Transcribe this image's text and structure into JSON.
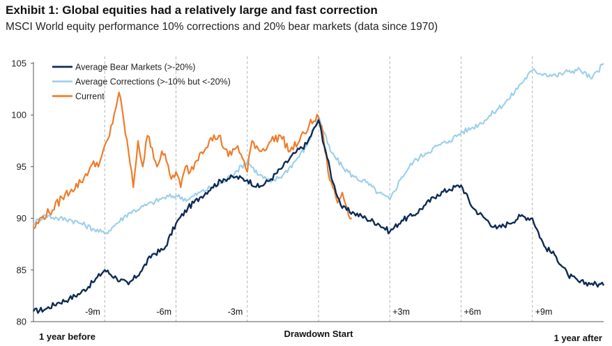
{
  "title": "Exhibit 1: Global equities had a relatively large and fast correction",
  "subtitle": "MSCI World equity performance 10% corrections and 20% bear markets (data since 1970)",
  "chart_data": {
    "type": "line",
    "title": "Exhibit 1: Global equities had a relatively large and fast correction",
    "subtitle": "MSCI World equity performance 10% corrections and 20% bear markets (data since 1970)",
    "ylim": [
      80,
      105
    ],
    "yticks": [
      80,
      85,
      90,
      95,
      100,
      105
    ],
    "xlim": [
      -12,
      12
    ],
    "grid": false,
    "legend_position": "top-left",
    "vlines": [
      -9,
      -6,
      -3,
      0,
      3,
      6,
      9
    ],
    "xmarkers": [
      {
        "x": -9,
        "label": "-9m"
      },
      {
        "x": -6,
        "label": "-6m"
      },
      {
        "x": -3,
        "label": "-3m"
      },
      {
        "x": 3,
        "label": "+3m"
      },
      {
        "x": 6,
        "label": "+6m"
      },
      {
        "x": 9,
        "label": "+9m"
      }
    ],
    "bottom_labels": {
      "left": "1 year before",
      "center": "Drawdown Start",
      "right": "1 year after"
    },
    "xlabel": "",
    "ylabel": "",
    "series": [
      {
        "name": "Average Bear Markets (>-20%)",
        "color": "#0d2b55",
        "x": [
          -12,
          -11.5,
          -11,
          -10.5,
          -10,
          -9.5,
          -9,
          -8.5,
          -8,
          -7.5,
          -7,
          -6.5,
          -6,
          -5.5,
          -5,
          -4.5,
          -4,
          -3.5,
          -3,
          -2.5,
          -2,
          -1.5,
          -1,
          -0.5,
          0,
          0.3,
          0.6,
          1,
          1.5,
          2,
          2.5,
          3,
          3.5,
          4,
          4.5,
          5,
          5.5,
          6,
          6.5,
          7,
          7.5,
          8,
          8.5,
          9,
          9.5,
          10,
          10.5,
          11,
          11.5,
          12
        ],
        "values": [
          81,
          81.2,
          81.8,
          82.2,
          82.8,
          83.8,
          85.0,
          84.2,
          83.6,
          84.8,
          86.5,
          87.0,
          89.5,
          91.0,
          92.0,
          93.0,
          93.8,
          94.0,
          93.7,
          93.0,
          93.8,
          95.0,
          96.3,
          97.2,
          99.5,
          96.5,
          93.5,
          91.0,
          90.5,
          90.0,
          89.5,
          88.7,
          89.8,
          90.3,
          91.3,
          92.3,
          92.8,
          93.2,
          91.0,
          90.0,
          89.0,
          89.5,
          90.2,
          90.0,
          87.3,
          86.3,
          84.5,
          83.8,
          83.7,
          83.5
        ]
      },
      {
        "name": "Average Corrections (>-10% but <-20%)",
        "color": "#9fd0ea",
        "x": [
          -12,
          -11.5,
          -11,
          -10.5,
          -10,
          -9.5,
          -9,
          -8.5,
          -8,
          -7.5,
          -7,
          -6.5,
          -6,
          -5.5,
          -5,
          -4.5,
          -4,
          -3.5,
          -3,
          -2.5,
          -2,
          -1.5,
          -1,
          -0.5,
          0,
          0.5,
          1,
          1.5,
          2,
          2.5,
          3,
          3.5,
          4,
          4.5,
          5,
          5.5,
          6,
          6.5,
          7,
          7.5,
          8,
          8.5,
          9,
          9.5,
          10,
          10.5,
          11,
          11.5,
          12
        ],
        "values": [
          89.5,
          90.3,
          90.0,
          89.9,
          89.5,
          89.0,
          88.5,
          89.5,
          90.5,
          91.0,
          91.5,
          92.0,
          92.2,
          91.8,
          92.5,
          93.0,
          93.5,
          94.5,
          95.5,
          94.2,
          93.5,
          94.2,
          95.5,
          97.0,
          99.8,
          96.5,
          95.0,
          94.0,
          93.5,
          92.5,
          91.8,
          94.0,
          95.5,
          96.3,
          97.0,
          97.5,
          98.3,
          98.8,
          99.5,
          100.5,
          101.5,
          103.0,
          104.3,
          104.0,
          103.8,
          104.2,
          104.4,
          103.5,
          105.0
        ]
      },
      {
        "name": "Current",
        "color": "#ee7d2b",
        "x": [
          -12,
          -11.6,
          -11.2,
          -10.8,
          -10.4,
          -10,
          -9.6,
          -9.2,
          -8.8,
          -8.4,
          -8,
          -7.8,
          -7.6,
          -7.4,
          -7.2,
          -7,
          -6.8,
          -6.6,
          -6.4,
          -6.2,
          -6,
          -5.8,
          -5.6,
          -5.4,
          -5,
          -4.6,
          -4.2,
          -3.8,
          -3.4,
          -3,
          -2.8,
          -2.4,
          -2,
          -1.6,
          -1.2,
          -0.8,
          -0.4,
          0,
          0.2,
          0.4,
          0.6,
          0.8,
          1.0,
          1.2,
          1.4
        ],
        "values": [
          89.0,
          90.2,
          90.8,
          92.0,
          92.8,
          93.5,
          95.0,
          95.5,
          98.0,
          102.2,
          96.5,
          93.0,
          97.5,
          95.0,
          98.0,
          96.8,
          95.0,
          96.5,
          95.5,
          93.8,
          94.5,
          93.0,
          95.0,
          94.5,
          96.3,
          97.5,
          98.0,
          96.0,
          97.0,
          94.5,
          97.5,
          96.5,
          97.5,
          98.0,
          96.5,
          97.5,
          99.0,
          99.8,
          98.0,
          94.5,
          93.0,
          91.5,
          92.5,
          91.0,
          90.0
        ]
      }
    ]
  }
}
